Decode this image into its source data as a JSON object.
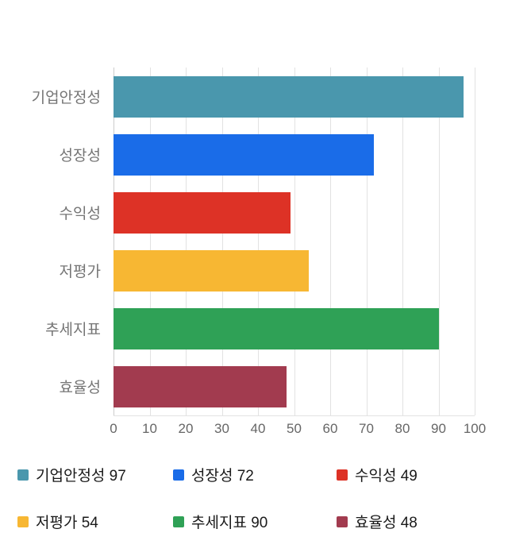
{
  "chart_data": {
    "type": "bar",
    "orientation": "horizontal",
    "categories": [
      "기업안정성",
      "성장성",
      "수익성",
      "저평가",
      "추세지표",
      "효율성"
    ],
    "values": [
      97,
      72,
      49,
      54,
      90,
      48
    ],
    "colors": [
      "#4a97ad",
      "#1a6ce8",
      "#dd3226",
      "#f7b733",
      "#2fa156",
      "#a23b4f"
    ],
    "xlim": [
      0,
      100
    ],
    "x_ticks": [
      0,
      10,
      20,
      30,
      40,
      50,
      60,
      70,
      80,
      90,
      100
    ],
    "grid": "vertical-gridlines",
    "legend_position": "bottom",
    "legend": [
      {
        "label": "기업안정성 97",
        "color": "#4a97ad"
      },
      {
        "label": "성장성 72",
        "color": "#1a6ce8"
      },
      {
        "label": "수익성 49",
        "color": "#dd3226"
      },
      {
        "label": "저평가 54",
        "color": "#f7b733"
      },
      {
        "label": "추세지표 90",
        "color": "#2fa156"
      },
      {
        "label": "효율성 48",
        "color": "#a23b4f"
      }
    ]
  },
  "styles": {
    "background": "#ffffff",
    "gridline_color": "#e2e2e2",
    "axis_label_color": "#666666",
    "category_label_color": "#757575",
    "legend_text_color": "#1a1a1a"
  }
}
